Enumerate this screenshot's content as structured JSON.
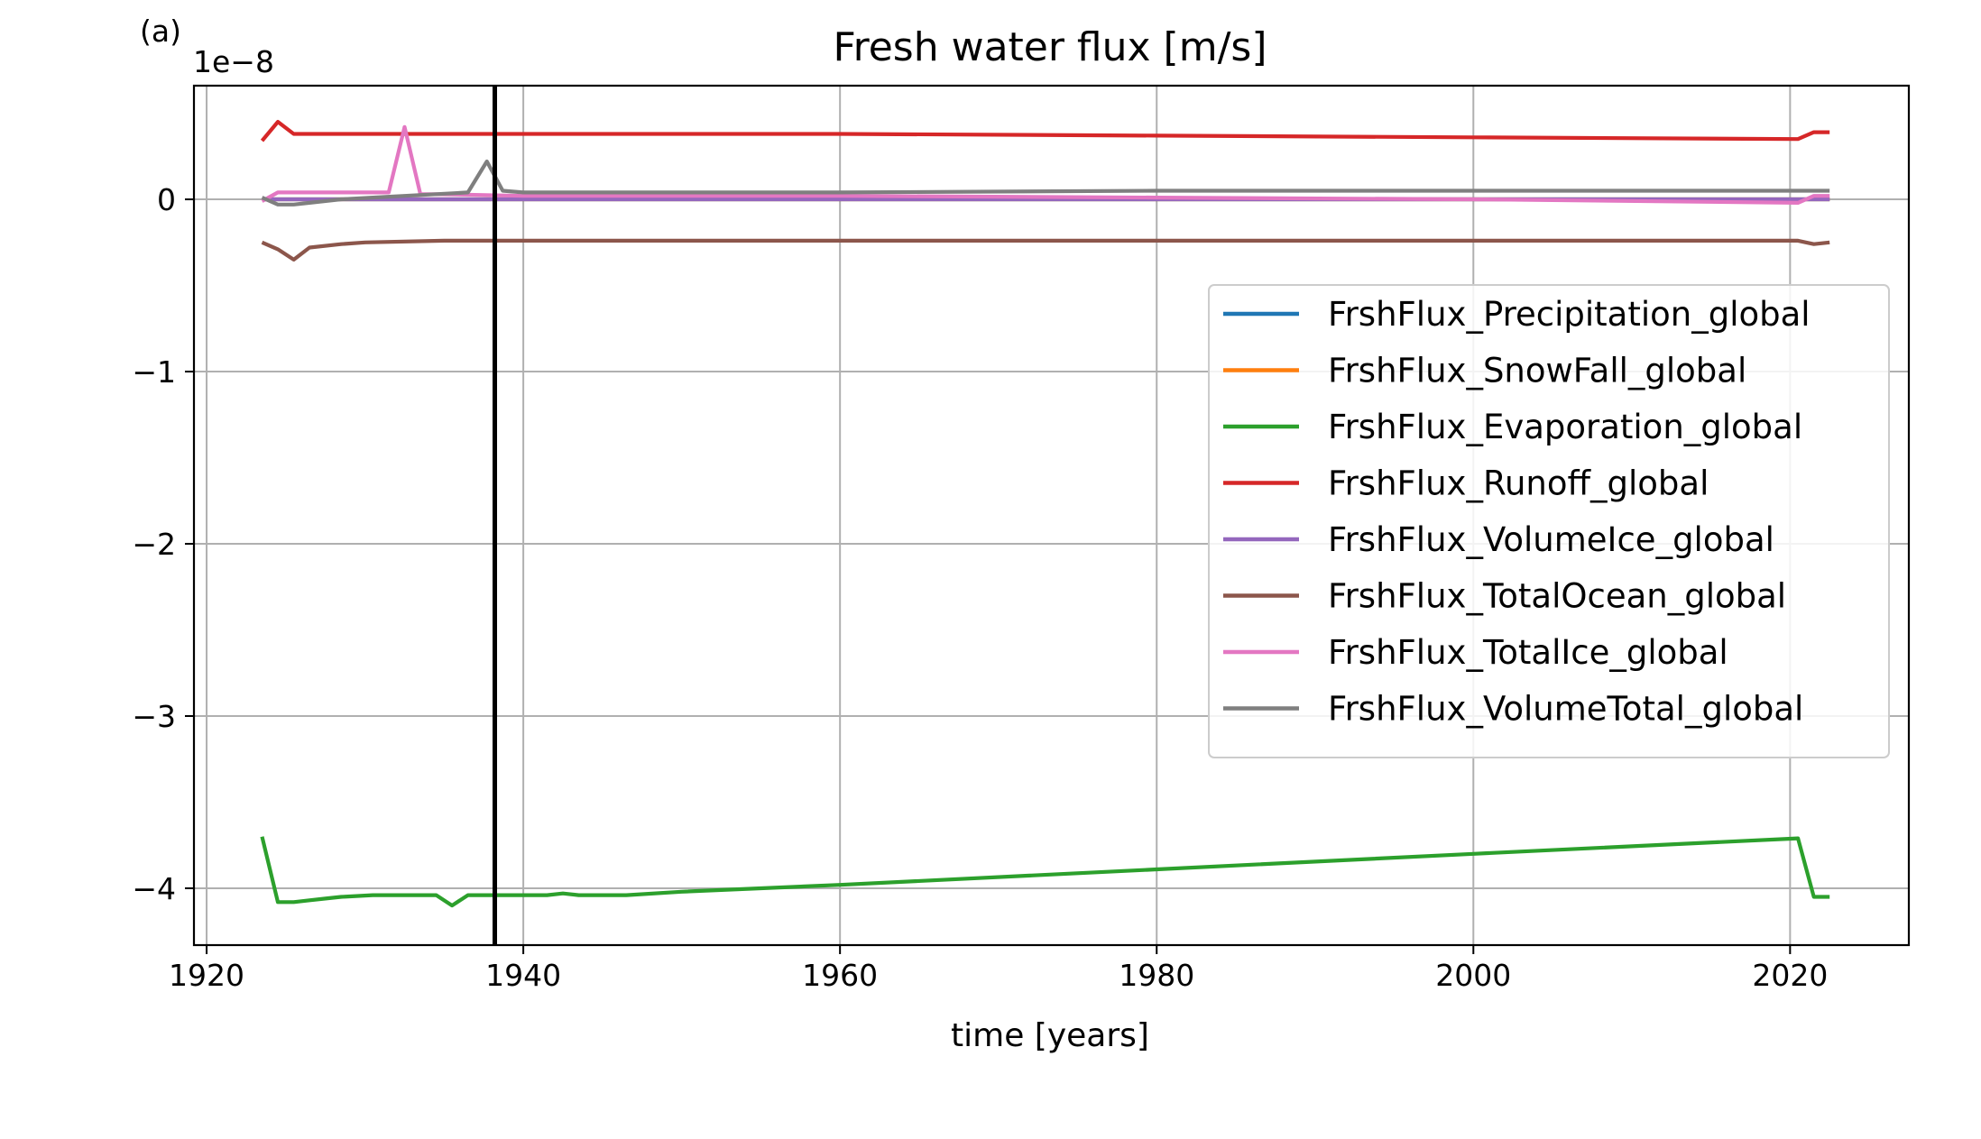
{
  "panel_label": "(a)",
  "chart_data": {
    "type": "line",
    "title": "Fresh water flux [m/s]",
    "xlabel": "time [years]",
    "ylabel": "",
    "y_scale_label": "1e−8",
    "xlim": [
      1919.2,
      2027.5
    ],
    "ylim": [
      -4.33,
      0.66
    ],
    "xticks": [
      1920,
      1940,
      1960,
      1980,
      2000,
      2020
    ],
    "xtick_labels": [
      "1920",
      "1940",
      "1960",
      "1980",
      "2000",
      "2020"
    ],
    "yticks": [
      0,
      -1,
      -2,
      -3,
      -4
    ],
    "ytick_labels": [
      "0",
      "−1",
      "−2",
      "−3",
      "−4"
    ],
    "grid": true,
    "legend_position": "center-right",
    "vertical_marker": {
      "x": 1938.2,
      "color": "#000000"
    },
    "series": [
      {
        "name": "FrshFlux_Precipitation_global",
        "color": "#1f77b4",
        "x": [
          1923.5,
          1924.5,
          1925.5,
          1930,
          1940,
          1960,
          1980,
          2000,
          2020.5,
          2021.5,
          2022.5
        ],
        "y": [
          0.0,
          0.0,
          0.0,
          0.0,
          0.0,
          0.0,
          0.0,
          0.0,
          0.0,
          0.0,
          0.0
        ]
      },
      {
        "name": "FrshFlux_SnowFall_global",
        "color": "#ff7f0e",
        "x": [
          1923.5,
          1924.5,
          1925.5,
          1930,
          1940,
          1960,
          1980,
          2000,
          2020.5,
          2021.5,
          2022.5
        ],
        "y": [
          0.0,
          0.0,
          0.0,
          0.0,
          0.0,
          0.0,
          0.0,
          0.0,
          0.0,
          0.0,
          0.0
        ]
      },
      {
        "name": "FrshFlux_Evaporation_global",
        "color": "#2ca02c",
        "x": [
          1923.5,
          1924.5,
          1925.5,
          1926.5,
          1927.5,
          1928.5,
          1930.5,
          1931.5,
          1932.5,
          1933.5,
          1934.5,
          1935.5,
          1936.5,
          1938.5,
          1941.5,
          1942.5,
          1943.5,
          1946.5,
          1950,
          1960,
          1980,
          2000,
          2020.5,
          2021.5,
          2022.5
        ],
        "y": [
          -3.7,
          -4.08,
          -4.08,
          -4.07,
          -4.06,
          -4.05,
          -4.04,
          -4.04,
          -4.04,
          -4.04,
          -4.04,
          -4.1,
          -4.04,
          -4.04,
          -4.04,
          -4.03,
          -4.04,
          -4.04,
          -4.02,
          -3.98,
          -3.89,
          -3.8,
          -3.71,
          -4.05,
          -4.05
        ]
      },
      {
        "name": "FrshFlux_Runoff_global",
        "color": "#d62728",
        "x": [
          1923.5,
          1924.5,
          1925.5,
          1930,
          1940,
          1960,
          1980,
          2000,
          2020.5,
          2021.5,
          2022.5
        ],
        "y": [
          0.34,
          0.45,
          0.38,
          0.38,
          0.38,
          0.38,
          0.37,
          0.36,
          0.35,
          0.39,
          0.39
        ]
      },
      {
        "name": "FrshFlux_VolumeIce_global",
        "color": "#9467bd",
        "x": [
          1923.5,
          1924.5,
          1925.5,
          1930,
          1940,
          1960,
          1980,
          2000,
          2020.5,
          2021.5,
          2022.5
        ],
        "y": [
          0.0,
          0.0,
          0.0,
          0.0,
          0.0,
          0.0,
          0.0,
          0.0,
          0.0,
          0.0,
          0.0
        ]
      },
      {
        "name": "FrshFlux_TotalOcean_global",
        "color": "#8c564b",
        "x": [
          1923.5,
          1924.5,
          1925.5,
          1926.5,
          1928.5,
          1930,
          1935,
          1940,
          1960,
          1980,
          2000,
          2020.5,
          2021.5,
          2022.5
        ],
        "y": [
          -0.25,
          -0.29,
          -0.35,
          -0.28,
          -0.26,
          -0.25,
          -0.24,
          -0.24,
          -0.24,
          -0.24,
          -0.24,
          -0.24,
          -0.26,
          -0.25
        ]
      },
      {
        "name": "FrshFlux_TotalIce_global",
        "color": "#e377c2",
        "x": [
          1923.5,
          1924.5,
          1925.5,
          1931.5,
          1932.5,
          1933.5,
          1934.5,
          1940,
          1960,
          1980,
          2000,
          2020.5,
          2021.5,
          2022.5
        ],
        "y": [
          -0.01,
          0.04,
          0.04,
          0.04,
          0.42,
          0.03,
          0.03,
          0.02,
          0.02,
          0.01,
          0.0,
          -0.02,
          0.02,
          0.02
        ]
      },
      {
        "name": "FrshFlux_VolumeTotal_global",
        "color": "#7f7f7f",
        "x": [
          1923.5,
          1924.5,
          1925.5,
          1926.5,
          1928.5,
          1930.5,
          1932.5,
          1934.5,
          1936.5,
          1937.7,
          1938.7,
          1940,
          1960,
          1980,
          2000,
          2020.5,
          2021.5,
          2022.5
        ],
        "y": [
          0.01,
          -0.03,
          -0.03,
          -0.02,
          0.0,
          0.01,
          0.02,
          0.03,
          0.04,
          0.22,
          0.05,
          0.04,
          0.04,
          0.05,
          0.05,
          0.05,
          0.05,
          0.05
        ]
      }
    ]
  }
}
